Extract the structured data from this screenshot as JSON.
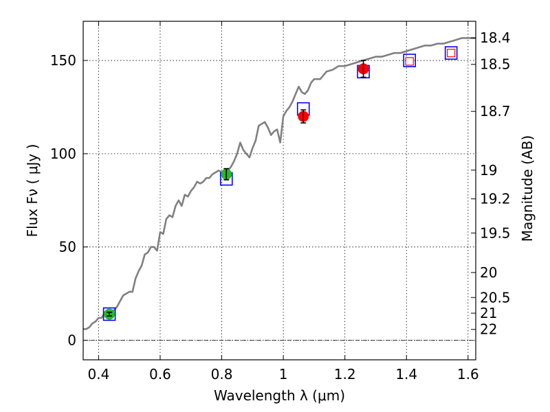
{
  "chart_data": {
    "type": "scatter",
    "title": "",
    "xlabel": "Wavelength  λ (μm)",
    "ylabel": "Flux  Fν  ( μJy )",
    "ylabel_right": "Magnitude (AB)",
    "xlim": [
      0.35,
      1.625
    ],
    "ylim": [
      -10.5,
      171
    ],
    "grid": true,
    "x_ticks": [
      0.4,
      0.6,
      0.8,
      1.0,
      1.2,
      1.4,
      1.6
    ],
    "x_tick_labels": [
      "0.4",
      "0.6",
      "0.8",
      "1",
      "1.2",
      "1.4",
      "1.6"
    ],
    "y_ticks": [
      0,
      50,
      100,
      150
    ],
    "y_tick_labels": [
      "0",
      "50",
      "100",
      "150"
    ],
    "right_ticks": [
      {
        "flux": 162.1,
        "label": "18.4"
      },
      {
        "flux": 147.9,
        "label": "18.5"
      },
      {
        "flux": 122.7,
        "label": "18.7"
      },
      {
        "flux": 91.2,
        "label": "19"
      },
      {
        "flux": 75.8,
        "label": "19.2"
      },
      {
        "flux": 57.5,
        "label": "19.5"
      },
      {
        "flux": 36.3,
        "label": "20"
      },
      {
        "flux": 22.9,
        "label": "20.5"
      },
      {
        "flux": 14.5,
        "label": "21"
      },
      {
        "flux": 5.8,
        "label": "22"
      }
    ],
    "zero_line": 0,
    "series": [
      {
        "kind": "spectrum",
        "color": "#808080",
        "x": [
          0.35,
          0.36,
          0.37,
          0.38,
          0.39,
          0.4,
          0.41,
          0.42,
          0.43,
          0.44,
          0.45,
          0.46,
          0.47,
          0.48,
          0.49,
          0.5,
          0.51,
          0.52,
          0.53,
          0.54,
          0.55,
          0.56,
          0.57,
          0.58,
          0.59,
          0.6,
          0.61,
          0.62,
          0.63,
          0.64,
          0.65,
          0.66,
          0.67,
          0.68,
          0.69,
          0.7,
          0.71,
          0.72,
          0.73,
          0.74,
          0.75,
          0.76,
          0.77,
          0.78,
          0.79,
          0.8,
          0.81,
          0.82,
          0.83,
          0.84,
          0.85,
          0.86,
          0.87,
          0.88,
          0.89,
          0.9,
          0.91,
          0.92,
          0.93,
          0.94,
          0.95,
          0.96,
          0.97,
          0.98,
          0.99,
          1.0,
          1.01,
          1.02,
          1.03,
          1.04,
          1.05,
          1.06,
          1.07,
          1.08,
          1.09,
          1.1,
          1.12,
          1.14,
          1.16,
          1.18,
          1.2,
          1.22,
          1.24,
          1.26,
          1.28,
          1.3,
          1.32,
          1.34,
          1.36,
          1.38,
          1.4,
          1.42,
          1.44,
          1.46,
          1.48,
          1.5,
          1.52,
          1.54,
          1.56,
          1.58,
          1.6,
          1.625
        ],
        "y": [
          6,
          6,
          7,
          9,
          10,
          12,
          12,
          15,
          13,
          16,
          16,
          18,
          21,
          24,
          25,
          26,
          26,
          33,
          37,
          40,
          46,
          47,
          50,
          50,
          48,
          58,
          57,
          65,
          67,
          66,
          72,
          75,
          72,
          78,
          77,
          80,
          82,
          85,
          84,
          85,
          87,
          87,
          89,
          90,
          91,
          90,
          89,
          91,
          93,
          96,
          100,
          106,
          102,
          100,
          98,
          103,
          107,
          115,
          116,
          117,
          114,
          110,
          112,
          113,
          106,
          120,
          123,
          125,
          128,
          132,
          136,
          133,
          132,
          134,
          138,
          140,
          140,
          144,
          145,
          147,
          147,
          148,
          149,
          150,
          151,
          152,
          152,
          153,
          154,
          154,
          155,
          156,
          157,
          158,
          158,
          159,
          159,
          160,
          161,
          162,
          162,
          162
        ]
      },
      {
        "kind": "model-photometry",
        "marker": "open-square",
        "color": "#0000ff",
        "x": [
          0.435,
          0.815,
          1.065,
          1.26,
          1.41,
          1.545
        ],
        "y": [
          14,
          86.5,
          124,
          144,
          150,
          154
        ]
      },
      {
        "kind": "observed-green",
        "marker": "filled-circle",
        "color": "#22bb22",
        "x": [
          0.435,
          0.815
        ],
        "y": [
          14,
          89
        ],
        "yerr": [
          1,
          3
        ]
      },
      {
        "kind": "observed-red",
        "marker": "filled-circle",
        "color": "#ff0000",
        "x": [
          1.065,
          1.26
        ],
        "y": [
          120,
          145.5
        ],
        "yerr": [
          3.5,
          4.5
        ]
      },
      {
        "kind": "upper-limit",
        "marker": "small-open-square",
        "color": "#ff0000",
        "x": [
          1.41,
          1.545
        ],
        "y": [
          149.5,
          154
        ]
      }
    ]
  }
}
